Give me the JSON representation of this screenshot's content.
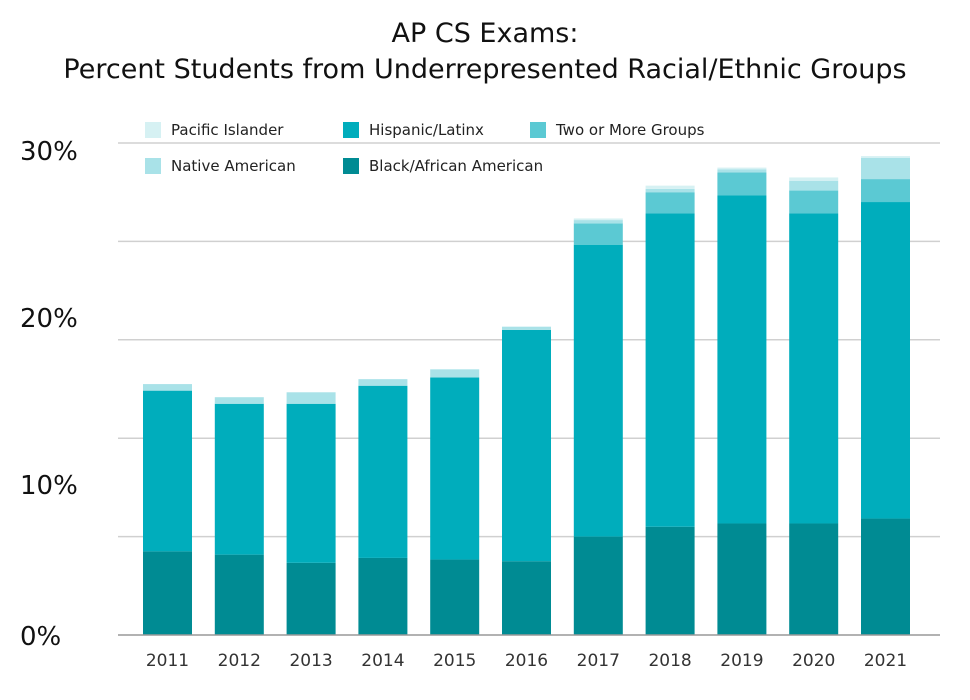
{
  "chart_data": {
    "type": "bar",
    "stacked": true,
    "title": "AP CS Exams:",
    "subtitle": "Percent Students from Underrepresented Racial/Ethnic Groups",
    "xlabel": "",
    "ylabel": "",
    "ylim": [
      0,
      30
    ],
    "yticks": [
      0,
      10,
      20,
      30
    ],
    "ytick_labels": [
      "0%",
      "10%",
      "20%",
      "30%"
    ],
    "grid": true,
    "legend_position": "top-left",
    "categories": [
      "2011",
      "2012",
      "2013",
      "2014",
      "2015",
      "2016",
      "2017",
      "2018",
      "2019",
      "2020",
      "2021"
    ],
    "series": [
      {
        "name": "Black/African American",
        "color": "#008b93",
        "values": [
          5.1,
          4.9,
          4.4,
          4.7,
          4.6,
          4.5,
          6.0,
          6.6,
          6.8,
          6.8,
          7.1
        ]
      },
      {
        "name": "Hispanic/Latinx",
        "color": "#00adbc",
        "values": [
          9.8,
          9.2,
          9.7,
          10.5,
          11.1,
          14.1,
          17.8,
          19.1,
          20.0,
          18.9,
          19.3
        ]
      },
      {
        "name": "Two or More Groups",
        "color": "#5bc9d3",
        "values": [
          0,
          0,
          0,
          0,
          0,
          0,
          1.3,
          1.3,
          1.4,
          1.4,
          1.4
        ]
      },
      {
        "name": "Native American",
        "color": "#a9e2e8",
        "values": [
          0.4,
          0.4,
          0.7,
          0.4,
          0.5,
          0.2,
          0.2,
          0.2,
          0.2,
          0.6,
          1.3
        ]
      },
      {
        "name": "Pacific Islander",
        "color": "#d6f1f3",
        "values": [
          0,
          0,
          0,
          0,
          0,
          0,
          0.1,
          0.2,
          0.1,
          0.2,
          0.1
        ]
      }
    ],
    "legend_order": [
      "Pacific Islander",
      "Hispanic/Latinx",
      "Two or More Groups",
      "Native American",
      "Black/African American"
    ]
  }
}
